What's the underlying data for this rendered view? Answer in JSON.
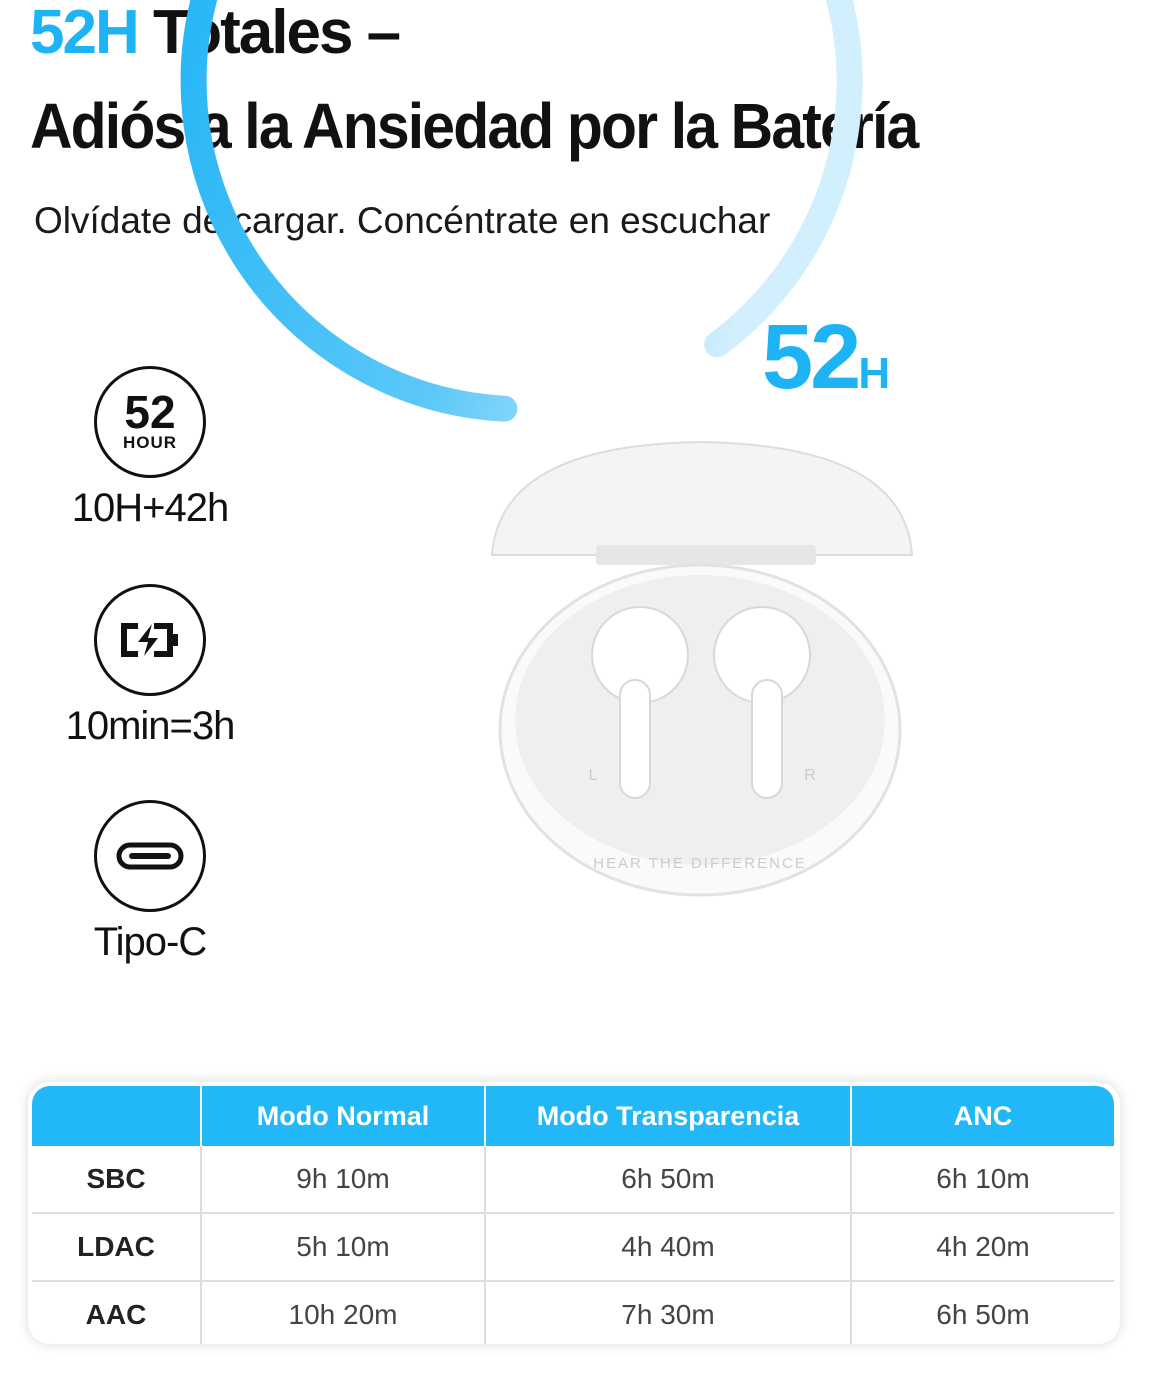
{
  "headline": {
    "accent": "52H",
    "line1_rest": " Totales –",
    "line2": "Adiós a la Ansiedad por la Batería"
  },
  "subtitle": "Olvídate de cargar. Concéntrate en escuchar",
  "features": [
    {
      "icon": "52-hour-badge-icon",
      "badge_number": "52",
      "badge_unit": "HOUR",
      "label": "10H+42h"
    },
    {
      "icon": "battery-charging-icon",
      "label": "10min=3h"
    },
    {
      "icon": "usb-c-port-icon",
      "label": "Tipo-C"
    }
  ],
  "ring": {
    "value": "52",
    "unit": "H",
    "fill_fraction": 0.89,
    "colors": [
      "#1eb3f5",
      "#cdeefd"
    ]
  },
  "product": {
    "case_text": "HEAR THE DIFFERENCE",
    "left_mark": "L",
    "right_mark": "R"
  },
  "table": {
    "headers": [
      "",
      "Modo Normal",
      "Modo Transparencia",
      "ANC"
    ],
    "rows": [
      [
        "SBC",
        "9h 10m",
        "6h 50m",
        "6h 10m"
      ],
      [
        "LDAC",
        "5h 10m",
        "4h 40m",
        "4h 20m"
      ],
      [
        "AAC",
        "10h 20m",
        "7h 30m",
        "6h 50m"
      ]
    ]
  },
  "colors": {
    "accent": "#1eb3f5",
    "header_bg": "#22b8f7"
  }
}
